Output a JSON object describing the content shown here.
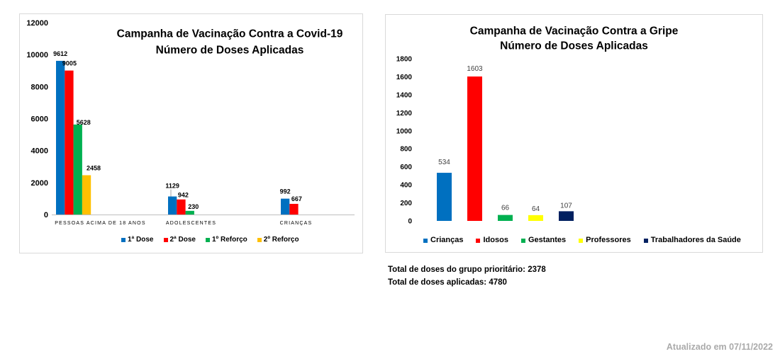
{
  "chart_data": [
    {
      "type": "bar",
      "title": "Campanha de Vacinação Contra a Covid-19",
      "subtitle": "Número de Doses Aplicadas",
      "categories": [
        "PESSOAS ACIMA DE 18 ANOS",
        "ADOLESCENTES",
        "CRIANÇAS"
      ],
      "series": [
        {
          "name": "1ª Dose",
          "color": "#0070C0",
          "values": [
            9612,
            1129,
            992
          ]
        },
        {
          "name": "2ª Dose",
          "color": "#FF0000",
          "values": [
            9005,
            942,
            667
          ]
        },
        {
          "name": "1º Reforço",
          "color": "#00B050",
          "values": [
            5628,
            230,
            null
          ]
        },
        {
          "name": "2º Reforço",
          "color": "#FFC000",
          "values": [
            2458,
            null,
            null
          ]
        }
      ],
      "ylim": [
        0,
        12000
      ],
      "yticks": [
        0,
        2000,
        4000,
        6000,
        8000,
        10000,
        12000
      ],
      "grid": false,
      "legend": "bottom"
    },
    {
      "type": "bar",
      "title": "Campanha de Vacinação Contra a Gripe",
      "subtitle": "Número de Doses Aplicadas",
      "categories": [
        "Crianças",
        "Idosos",
        "Gestantes",
        "Professores",
        "Trabalhadores da Saúde"
      ],
      "values": [
        534,
        1603,
        66,
        64,
        107
      ],
      "colors": [
        "#0070C0",
        "#FF0000",
        "#00B050",
        "#FFFF00",
        "#002060"
      ],
      "ylim": [
        0,
        1800
      ],
      "yticks": [
        0,
        200,
        400,
        600,
        800,
        1000,
        1200,
        1400,
        1600,
        1800
      ],
      "grid": false,
      "legend": "bottom"
    }
  ],
  "summary": {
    "priority_total": {
      "label": "Total de doses do grupo prioritário:",
      "value": 2378
    },
    "overall_total": {
      "label": "Total de doses aplicadas:",
      "value": 4780
    }
  },
  "footer": {
    "updated": "Atualizado em 07/11/2022"
  }
}
